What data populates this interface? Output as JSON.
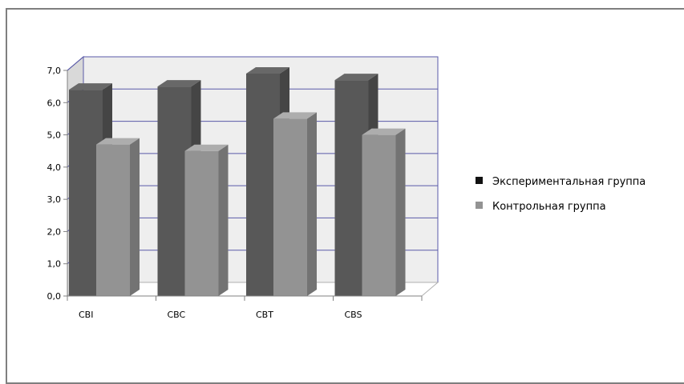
{
  "chart_data": {
    "type": "bar",
    "categories": [
      "CBI",
      "CBC",
      "CBT",
      "CBS"
    ],
    "series": [
      {
        "name": "Экспериментальная группа",
        "values": [
          6.4,
          6.5,
          6.9,
          6.7
        ],
        "color": "#585858"
      },
      {
        "name": "Контрольная группа",
        "values": [
          4.7,
          4.5,
          5.5,
          5.0
        ],
        "color": "#939393"
      }
    ],
    "yTicks": [
      "0,0",
      "1,0",
      "2,0",
      "3,0",
      "4,0",
      "5,0",
      "6,0",
      "7,0"
    ],
    "ylim": [
      0,
      7
    ],
    "grid": true,
    "legend": "right",
    "title": "",
    "xlabel": "",
    "ylabel": ""
  }
}
